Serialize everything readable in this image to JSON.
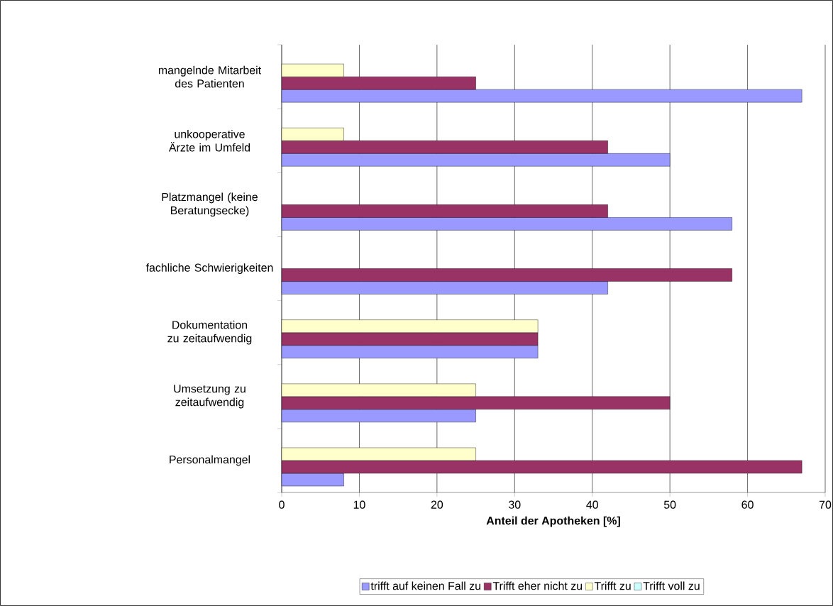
{
  "chart_data": {
    "type": "bar",
    "orientation": "horizontal",
    "xlabel": "Anteil der Apotheken [%]",
    "categories": [
      "mangelnde Mitarbeit des Patienten",
      "unkooperative Ärzte im Umfeld",
      "Platzmangel (keine Beratungsecke)",
      "fachliche Schwierigkeiten",
      "Dokumentation zu zeitaufwendig",
      "Umsetzung zu zeitaufwendig",
      "Personalmangel"
    ],
    "series": [
      {
        "name": "trifft auf keinen Fall zu",
        "color": "#9999ff",
        "values": [
          67,
          50,
          58,
          42,
          33,
          25,
          8
        ]
      },
      {
        "name": "Trifft eher nicht zu",
        "color": "#993366",
        "values": [
          25,
          42,
          42,
          58,
          33,
          50,
          67
        ]
      },
      {
        "name": "Trifft zu",
        "color": "#ffffcc",
        "values": [
          8,
          8,
          null,
          null,
          33,
          25,
          25
        ]
      },
      {
        "name": "Trifft voll zu",
        "color": "#ccffff",
        "values": [
          null,
          null,
          null,
          null,
          null,
          null,
          null
        ]
      }
    ],
    "xlim": [
      0,
      70
    ],
    "xticks": [
      0,
      10,
      20,
      30,
      40,
      50,
      60,
      70
    ],
    "grid": "x",
    "legend": "bottom"
  }
}
